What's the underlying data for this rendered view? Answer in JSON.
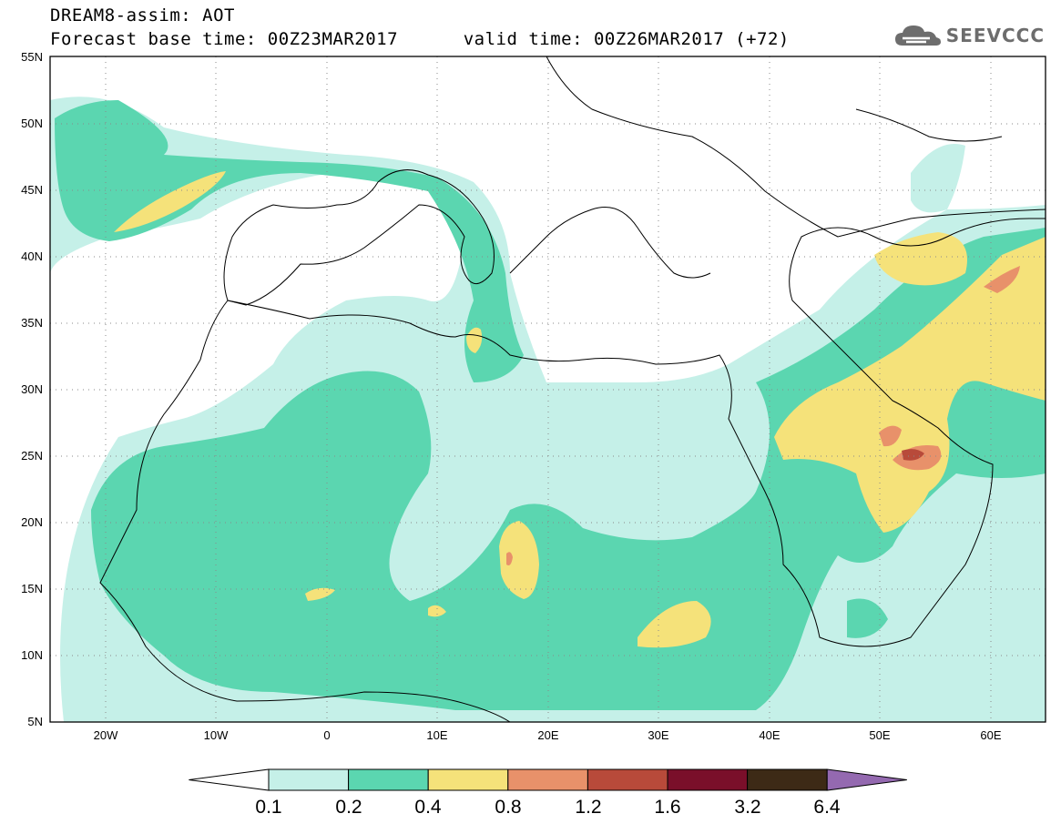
{
  "title": {
    "line1": "DREAM8-assim: AOT",
    "line2_base": "Forecast base time: 00Z23MAR2017",
    "line2_valid": "valid time: 00Z26MAR2017 (+72)"
  },
  "logo": {
    "text": "SEEVCCC",
    "icon": "cloud-icon"
  },
  "map": {
    "lat_labels": [
      "55N",
      "50N",
      "45N",
      "40N",
      "35N",
      "30N",
      "25N",
      "20N",
      "15N",
      "10N",
      "5N"
    ],
    "lon_labels": [
      "20W",
      "10W",
      "0",
      "10E",
      "20E",
      "30E",
      "40E",
      "50E",
      "60E"
    ],
    "lat_range": [
      5,
      55
    ],
    "lon_range": [
      -25,
      65
    ],
    "grid": true
  },
  "colorbar": {
    "labels": [
      "0.1",
      "0.2",
      "0.4",
      "0.8",
      "1.2",
      "1.6",
      "3.2",
      "6.4"
    ],
    "colors": [
      "#ffffff",
      "#c5f0e8",
      "#5bd6b0",
      "#f5e27a",
      "#e8916a",
      "#b84a3a",
      "#7a0f2a",
      "#3d2a16",
      "#9469b0"
    ]
  }
}
